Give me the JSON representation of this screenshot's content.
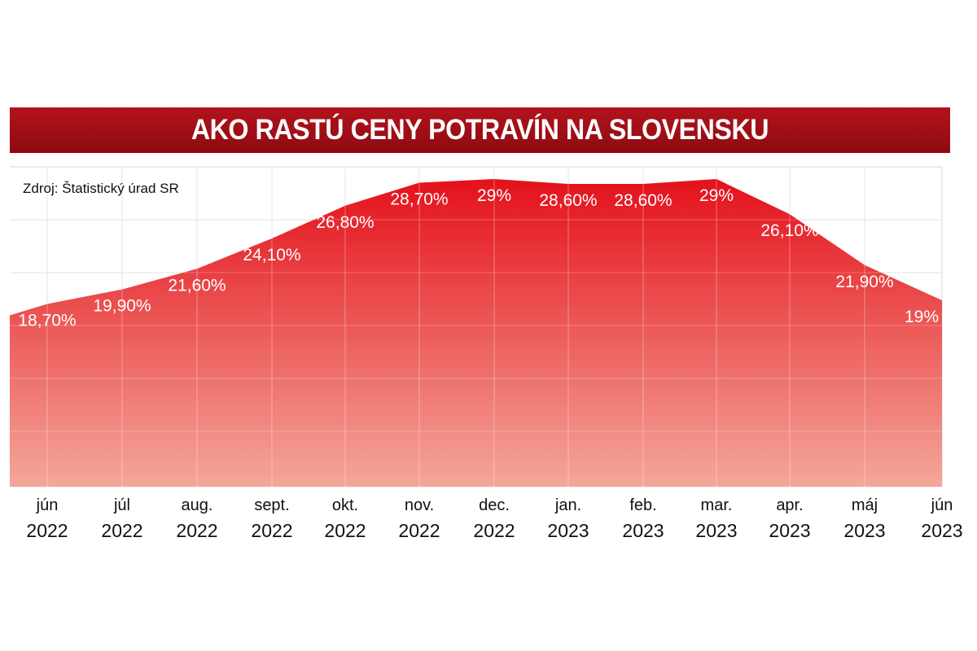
{
  "title": "AKO RASTÚ CENY POTRAVÍN NA SLOVENSKU",
  "source": "Zdroj: Štatistický úrad SR",
  "colors": {
    "title_bg": "#a50f17",
    "area_top": "#e4111b",
    "area_bottom": "#f4a79a",
    "label": "#ffffff"
  },
  "chart_data": {
    "type": "area",
    "title": "AKO RASTÚ CENY POTRAVÍN NA SLOVENSKU",
    "categories": [
      [
        "jún",
        "2022"
      ],
      [
        "júl",
        "2022"
      ],
      [
        "aug.",
        "2022"
      ],
      [
        "sept.",
        "2022"
      ],
      [
        "okt.",
        "2022"
      ],
      [
        "nov.",
        "2022"
      ],
      [
        "dec.",
        "2022"
      ],
      [
        "jan.",
        "2023"
      ],
      [
        "feb.",
        "2023"
      ],
      [
        "mar.",
        "2023"
      ],
      [
        "apr.",
        "2023"
      ],
      [
        "máj",
        "2023"
      ],
      [
        "jún",
        "2023"
      ]
    ],
    "values": [
      18.7,
      19.9,
      21.6,
      24.1,
      26.8,
      28.7,
      29,
      28.6,
      28.6,
      29,
      26.1,
      21.9,
      19
    ],
    "data_labels": [
      "18,70%",
      "19,90%",
      "21,60%",
      "24,10%",
      "26,80%",
      "28,70%",
      "29%",
      "28,60%",
      "28,60%",
      "29%",
      "26,10%",
      "21,90%",
      "19%"
    ],
    "xlabel": "",
    "ylabel": "",
    "grid": true,
    "legend": "none"
  }
}
